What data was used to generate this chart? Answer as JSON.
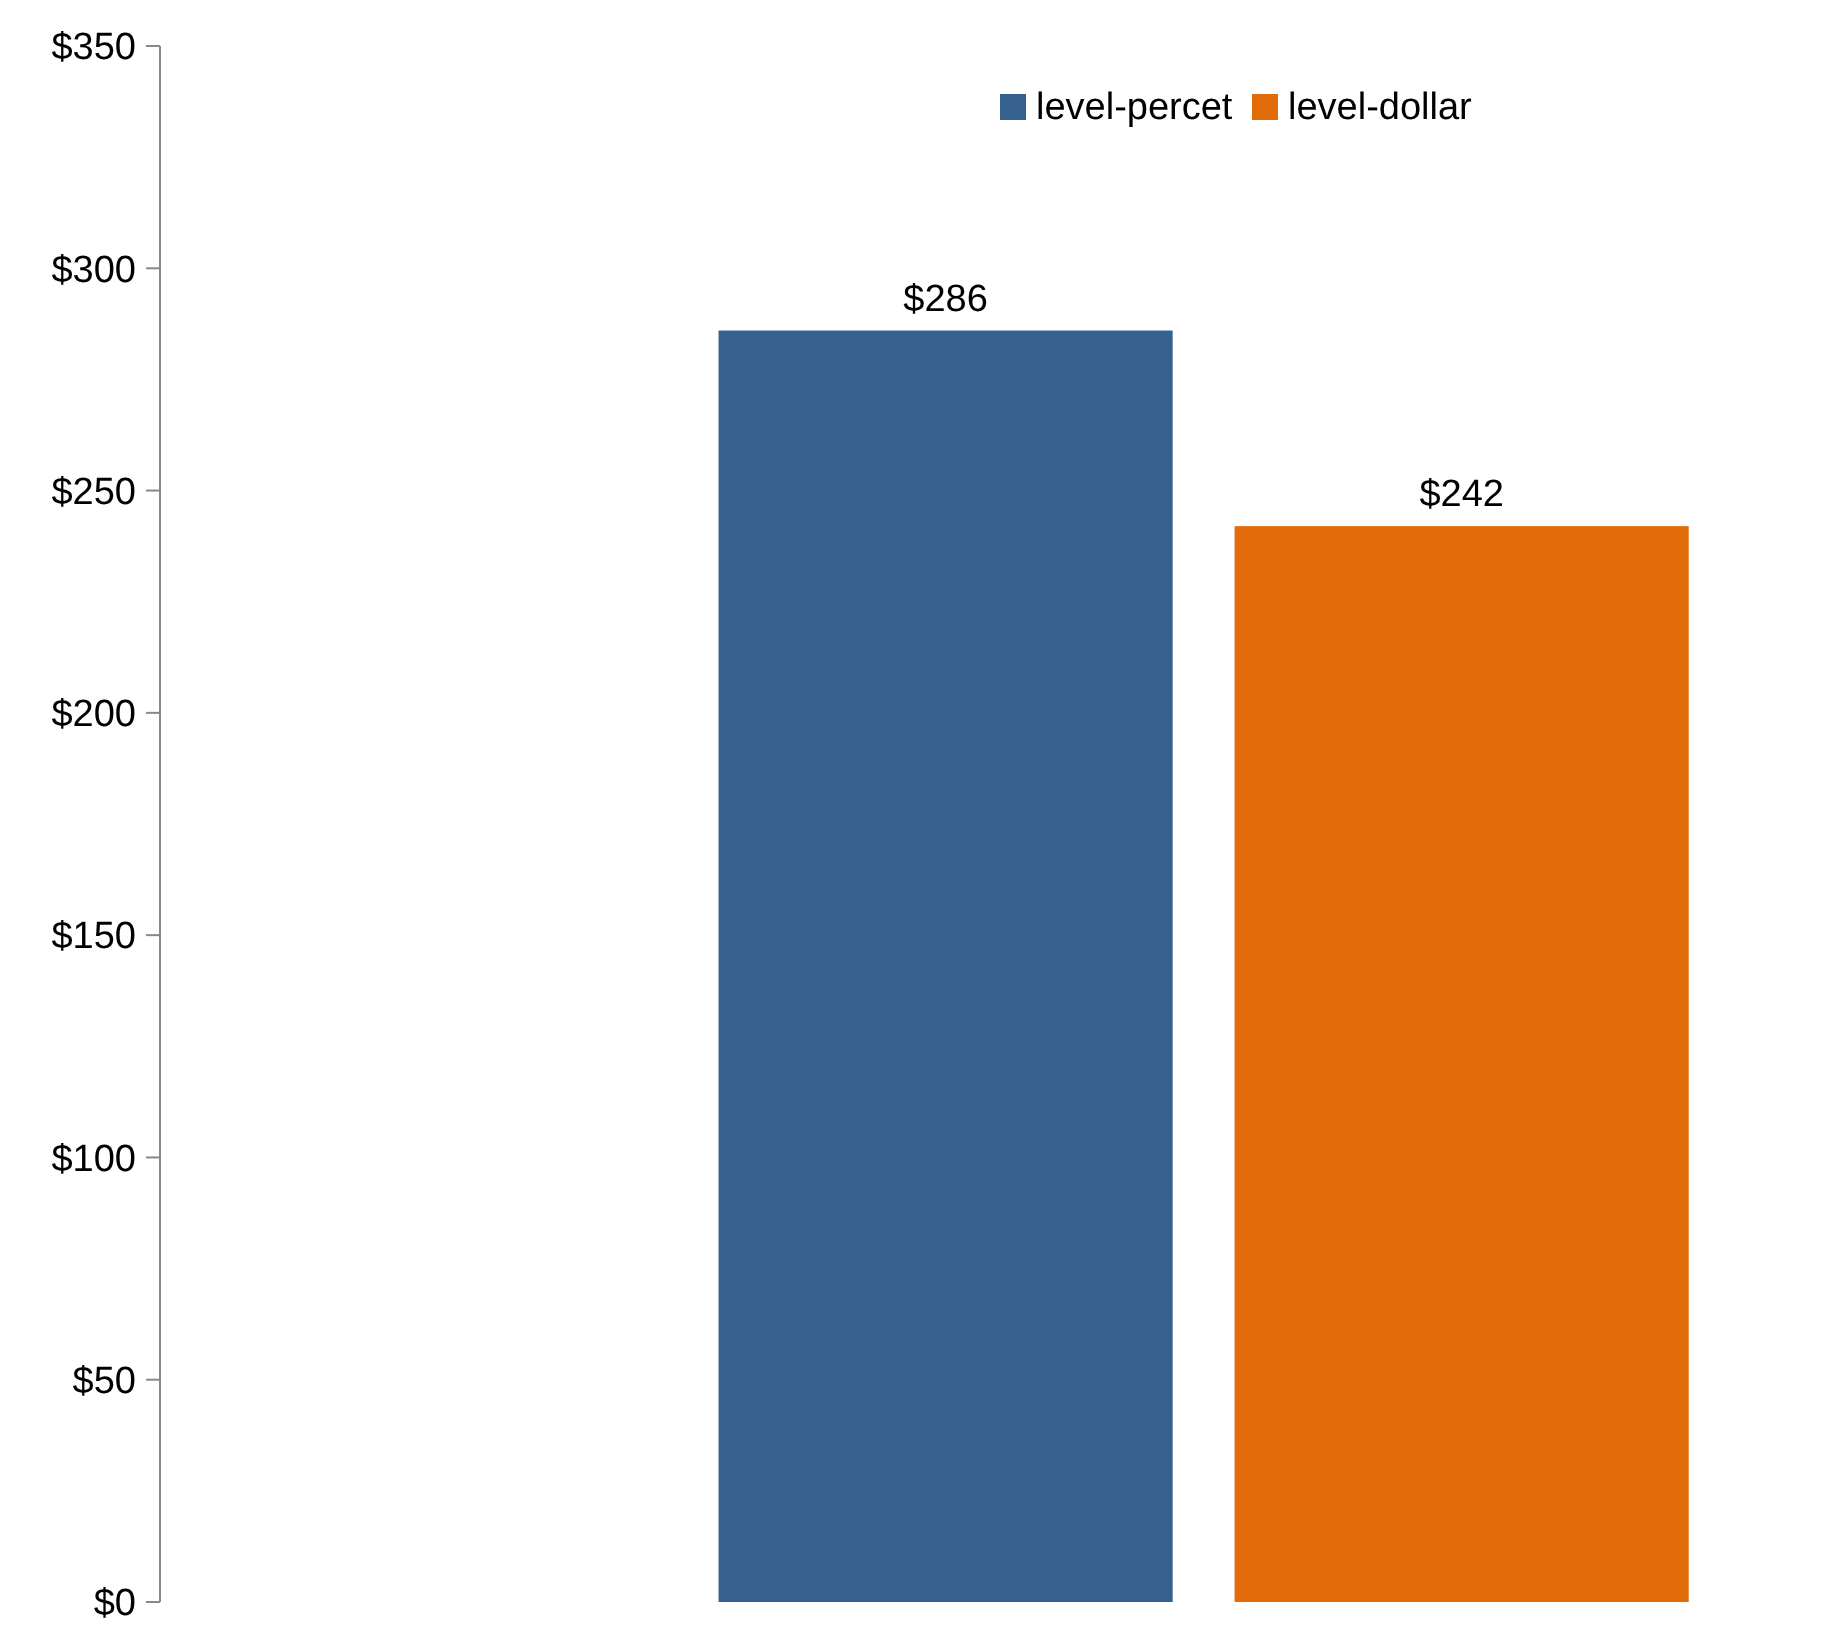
{
  "chart_data": {
    "type": "bar",
    "categories": [
      null
    ],
    "series": [
      {
        "name": "level-percet",
        "color": "#36618f",
        "values": [
          286
        ],
        "value_labels": [
          "$286"
        ]
      },
      {
        "name": "level-dollar",
        "color": "#e36c0a",
        "values": [
          242
        ],
        "value_labels": [
          "$242"
        ]
      }
    ],
    "ylim": [
      0,
      350
    ],
    "yticks": [
      {
        "value": 0,
        "label": "$0"
      },
      {
        "value": 50,
        "label": "$50"
      },
      {
        "value": 100,
        "label": "$100"
      },
      {
        "value": 150,
        "label": "$150"
      },
      {
        "value": 200,
        "label": "$200"
      },
      {
        "value": 250,
        "label": "$250"
      },
      {
        "value": 300,
        "label": "$300"
      },
      {
        "value": 350,
        "label": "$350"
      }
    ],
    "legend": "top right",
    "grid": false
  }
}
